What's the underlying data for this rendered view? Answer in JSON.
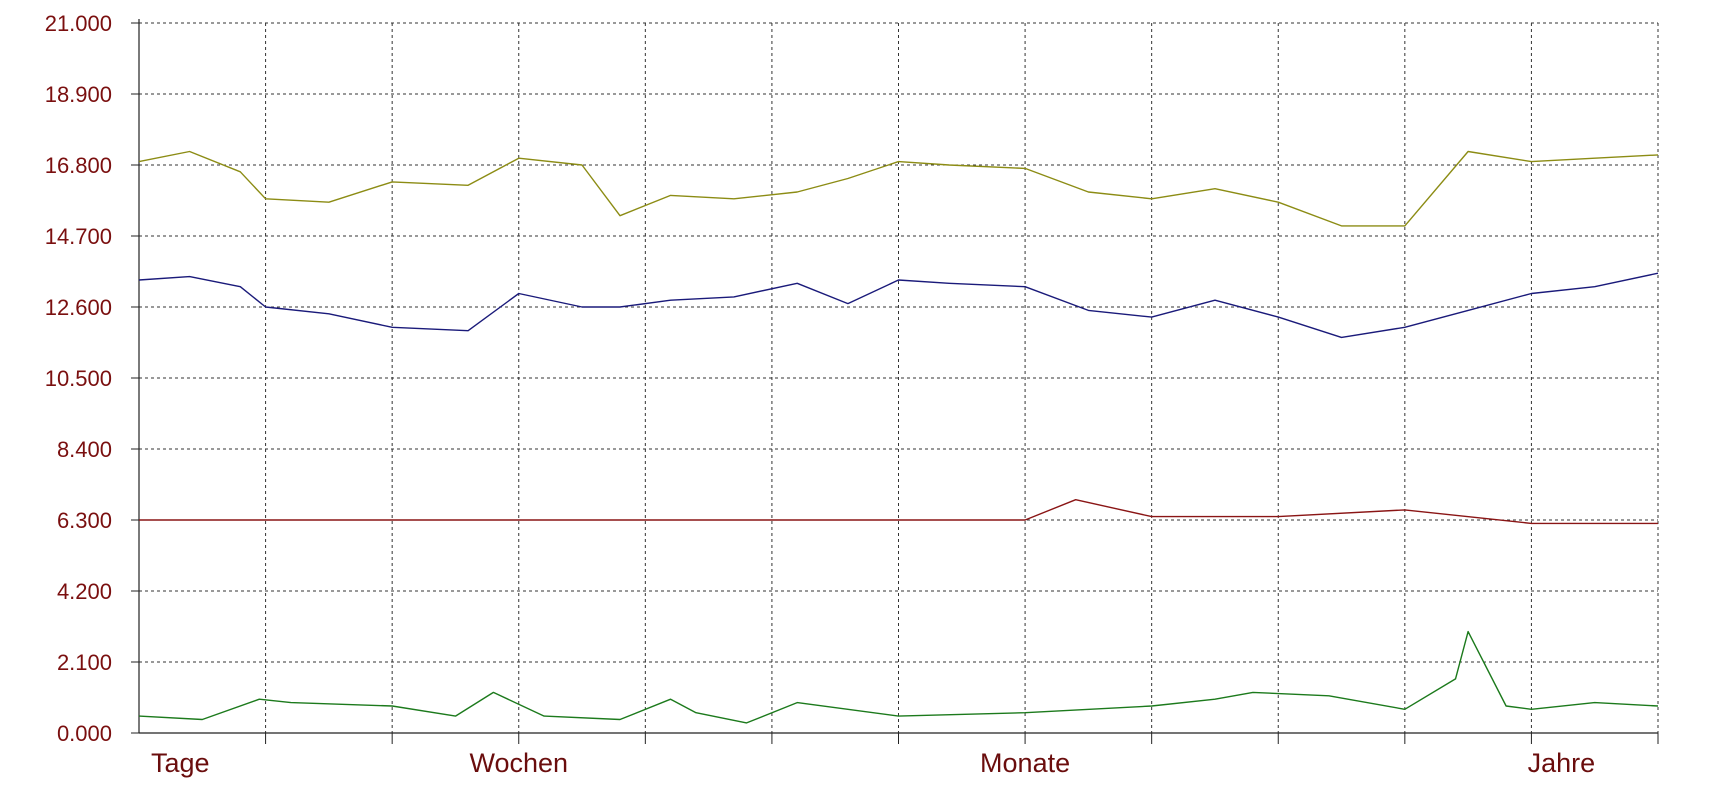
{
  "chart_data": {
    "type": "line",
    "title": "",
    "xlabel": "",
    "ylabel": "",
    "ylim": [
      0,
      21
    ],
    "y_ticks": [
      0.0,
      2.1,
      4.2,
      6.3,
      8.4,
      10.5,
      12.6,
      14.7,
      16.8,
      18.9,
      21.0
    ],
    "y_tick_labels": [
      "0.000",
      "2.100",
      "4.200",
      "6.300",
      "8.400",
      "10.500",
      "12.600",
      "14.700",
      "16.800",
      "18.900",
      "21.000"
    ],
    "x_range": [
      0,
      1200
    ],
    "x_gridlines": 12,
    "x_labels": [
      {
        "label": "Tage",
        "x": 0
      },
      {
        "label": "Wochen",
        "x": 300
      },
      {
        "label": "Monate",
        "x": 700
      },
      {
        "label": "Jahre",
        "x": 1100
      }
    ],
    "grid": true,
    "grid_style": "dotted",
    "legend": "none",
    "series": [
      {
        "color": "#8c8c14",
        "x": [
          0,
          40,
          80,
          100,
          150,
          200,
          260,
          300,
          350,
          380,
          420,
          470,
          520,
          560,
          600,
          640,
          700,
          750,
          800,
          850,
          900,
          950,
          1000,
          1050,
          1100,
          1150,
          1200
        ],
        "values": [
          16.9,
          17.2,
          16.6,
          15.8,
          15.7,
          16.3,
          16.2,
          17.0,
          16.8,
          15.3,
          15.9,
          15.8,
          16.0,
          16.4,
          16.9,
          16.8,
          16.7,
          16.0,
          15.8,
          16.1,
          15.7,
          15.0,
          15.0,
          17.2,
          16.9,
          17.0,
          17.1
        ]
      },
      {
        "color": "#1a1a7a",
        "x": [
          0,
          40,
          80,
          100,
          150,
          200,
          260,
          300,
          350,
          380,
          420,
          470,
          520,
          560,
          600,
          640,
          700,
          750,
          800,
          850,
          900,
          950,
          1000,
          1050,
          1100,
          1150,
          1200
        ],
        "values": [
          13.4,
          13.5,
          13.2,
          12.6,
          12.4,
          12.0,
          11.9,
          13.0,
          12.6,
          12.6,
          12.8,
          12.9,
          13.3,
          12.7,
          13.4,
          13.3,
          13.2,
          12.5,
          12.3,
          12.8,
          12.3,
          11.7,
          12.0,
          12.5,
          13.0,
          13.2,
          13.6
        ]
      },
      {
        "color": "#8a1515",
        "x": [
          0,
          100,
          200,
          300,
          400,
          500,
          600,
          700,
          740,
          800,
          900,
          1000,
          1100,
          1200
        ],
        "values": [
          6.3,
          6.3,
          6.3,
          6.3,
          6.3,
          6.3,
          6.3,
          6.3,
          6.9,
          6.4,
          6.4,
          6.6,
          6.2,
          6.2
        ]
      },
      {
        "color": "#1c7a1c",
        "x": [
          0,
          50,
          95,
          120,
          200,
          250,
          280,
          320,
          380,
          420,
          440,
          480,
          520,
          600,
          700,
          800,
          850,
          880,
          940,
          1000,
          1040,
          1050,
          1080,
          1100,
          1150,
          1200
        ],
        "values": [
          0.5,
          0.4,
          1.0,
          0.9,
          0.8,
          0.5,
          1.2,
          0.5,
          0.4,
          1.0,
          0.6,
          0.3,
          0.9,
          0.5,
          0.6,
          0.8,
          1.0,
          1.2,
          1.1,
          0.7,
          1.6,
          3.0,
          0.8,
          0.7,
          0.9,
          0.8
        ]
      }
    ]
  }
}
